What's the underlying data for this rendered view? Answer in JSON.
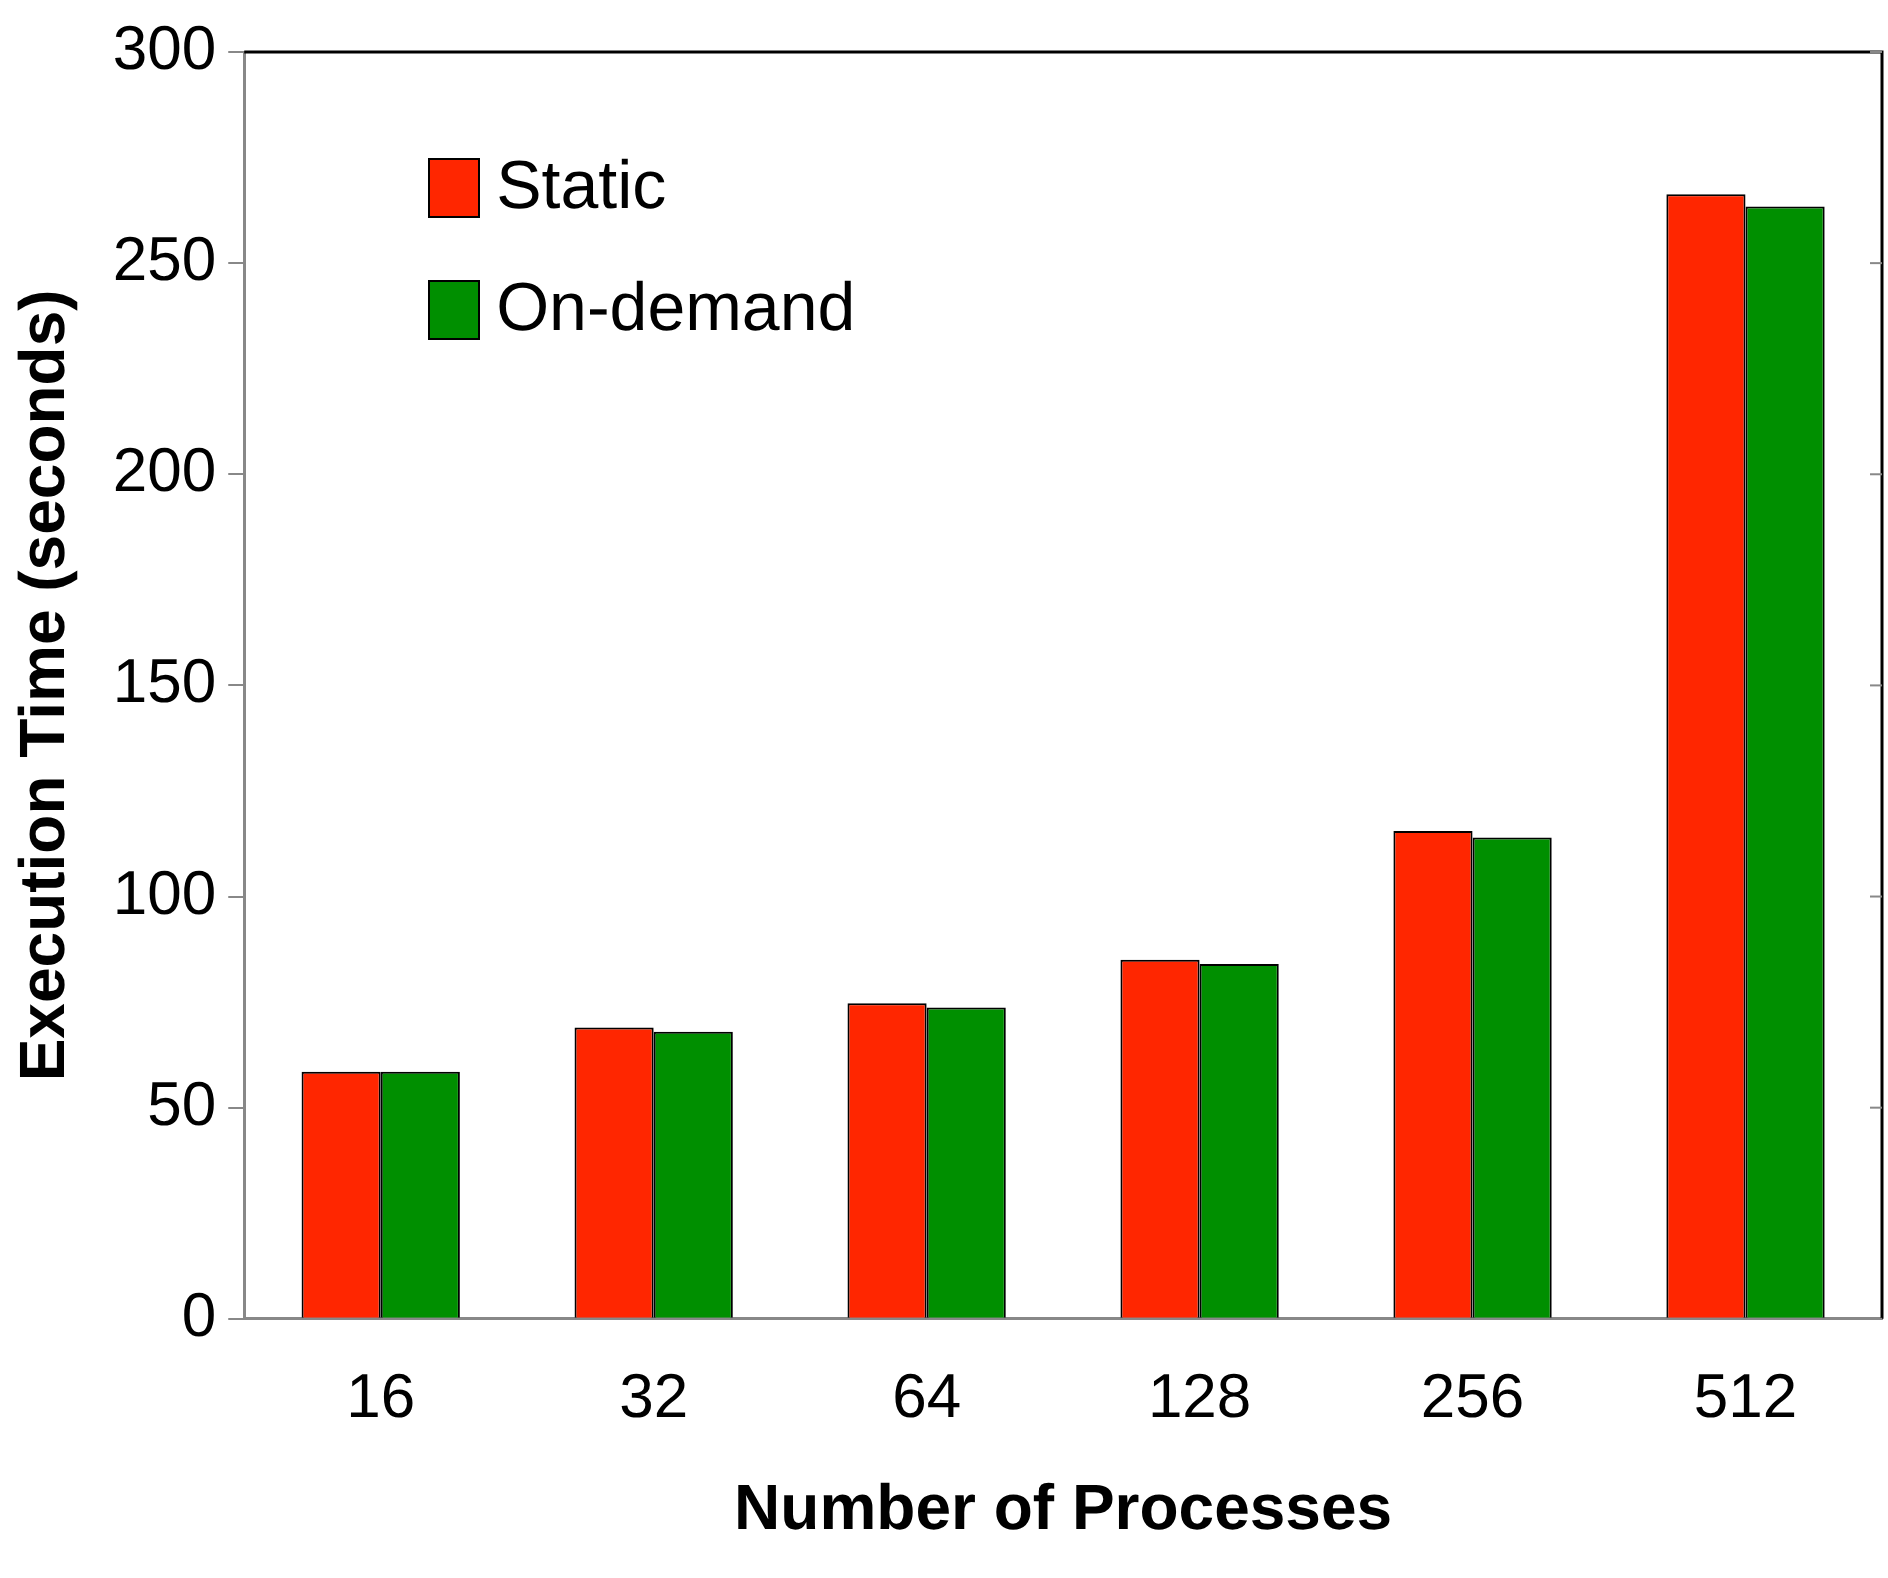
{
  "chart_data": {
    "type": "bar",
    "xlabel": "Number of Processes",
    "ylabel": "Execution Time (seconds)",
    "categories": [
      "16",
      "32",
      "64",
      "128",
      "256",
      "512"
    ],
    "series": [
      {
        "name": "Static",
        "color": "#ff2600",
        "values": [
          58.5,
          69,
          74.7,
          85,
          115.5,
          266.3
        ]
      },
      {
        "name": "On-demand",
        "color": "#008f00",
        "values": [
          58.5,
          68,
          73.7,
          84,
          114,
          263.4
        ]
      }
    ],
    "ylim": [
      0,
      300
    ],
    "yticks": [
      0,
      50,
      100,
      150,
      200,
      250,
      300
    ],
    "grid": false,
    "legend": "top left"
  }
}
